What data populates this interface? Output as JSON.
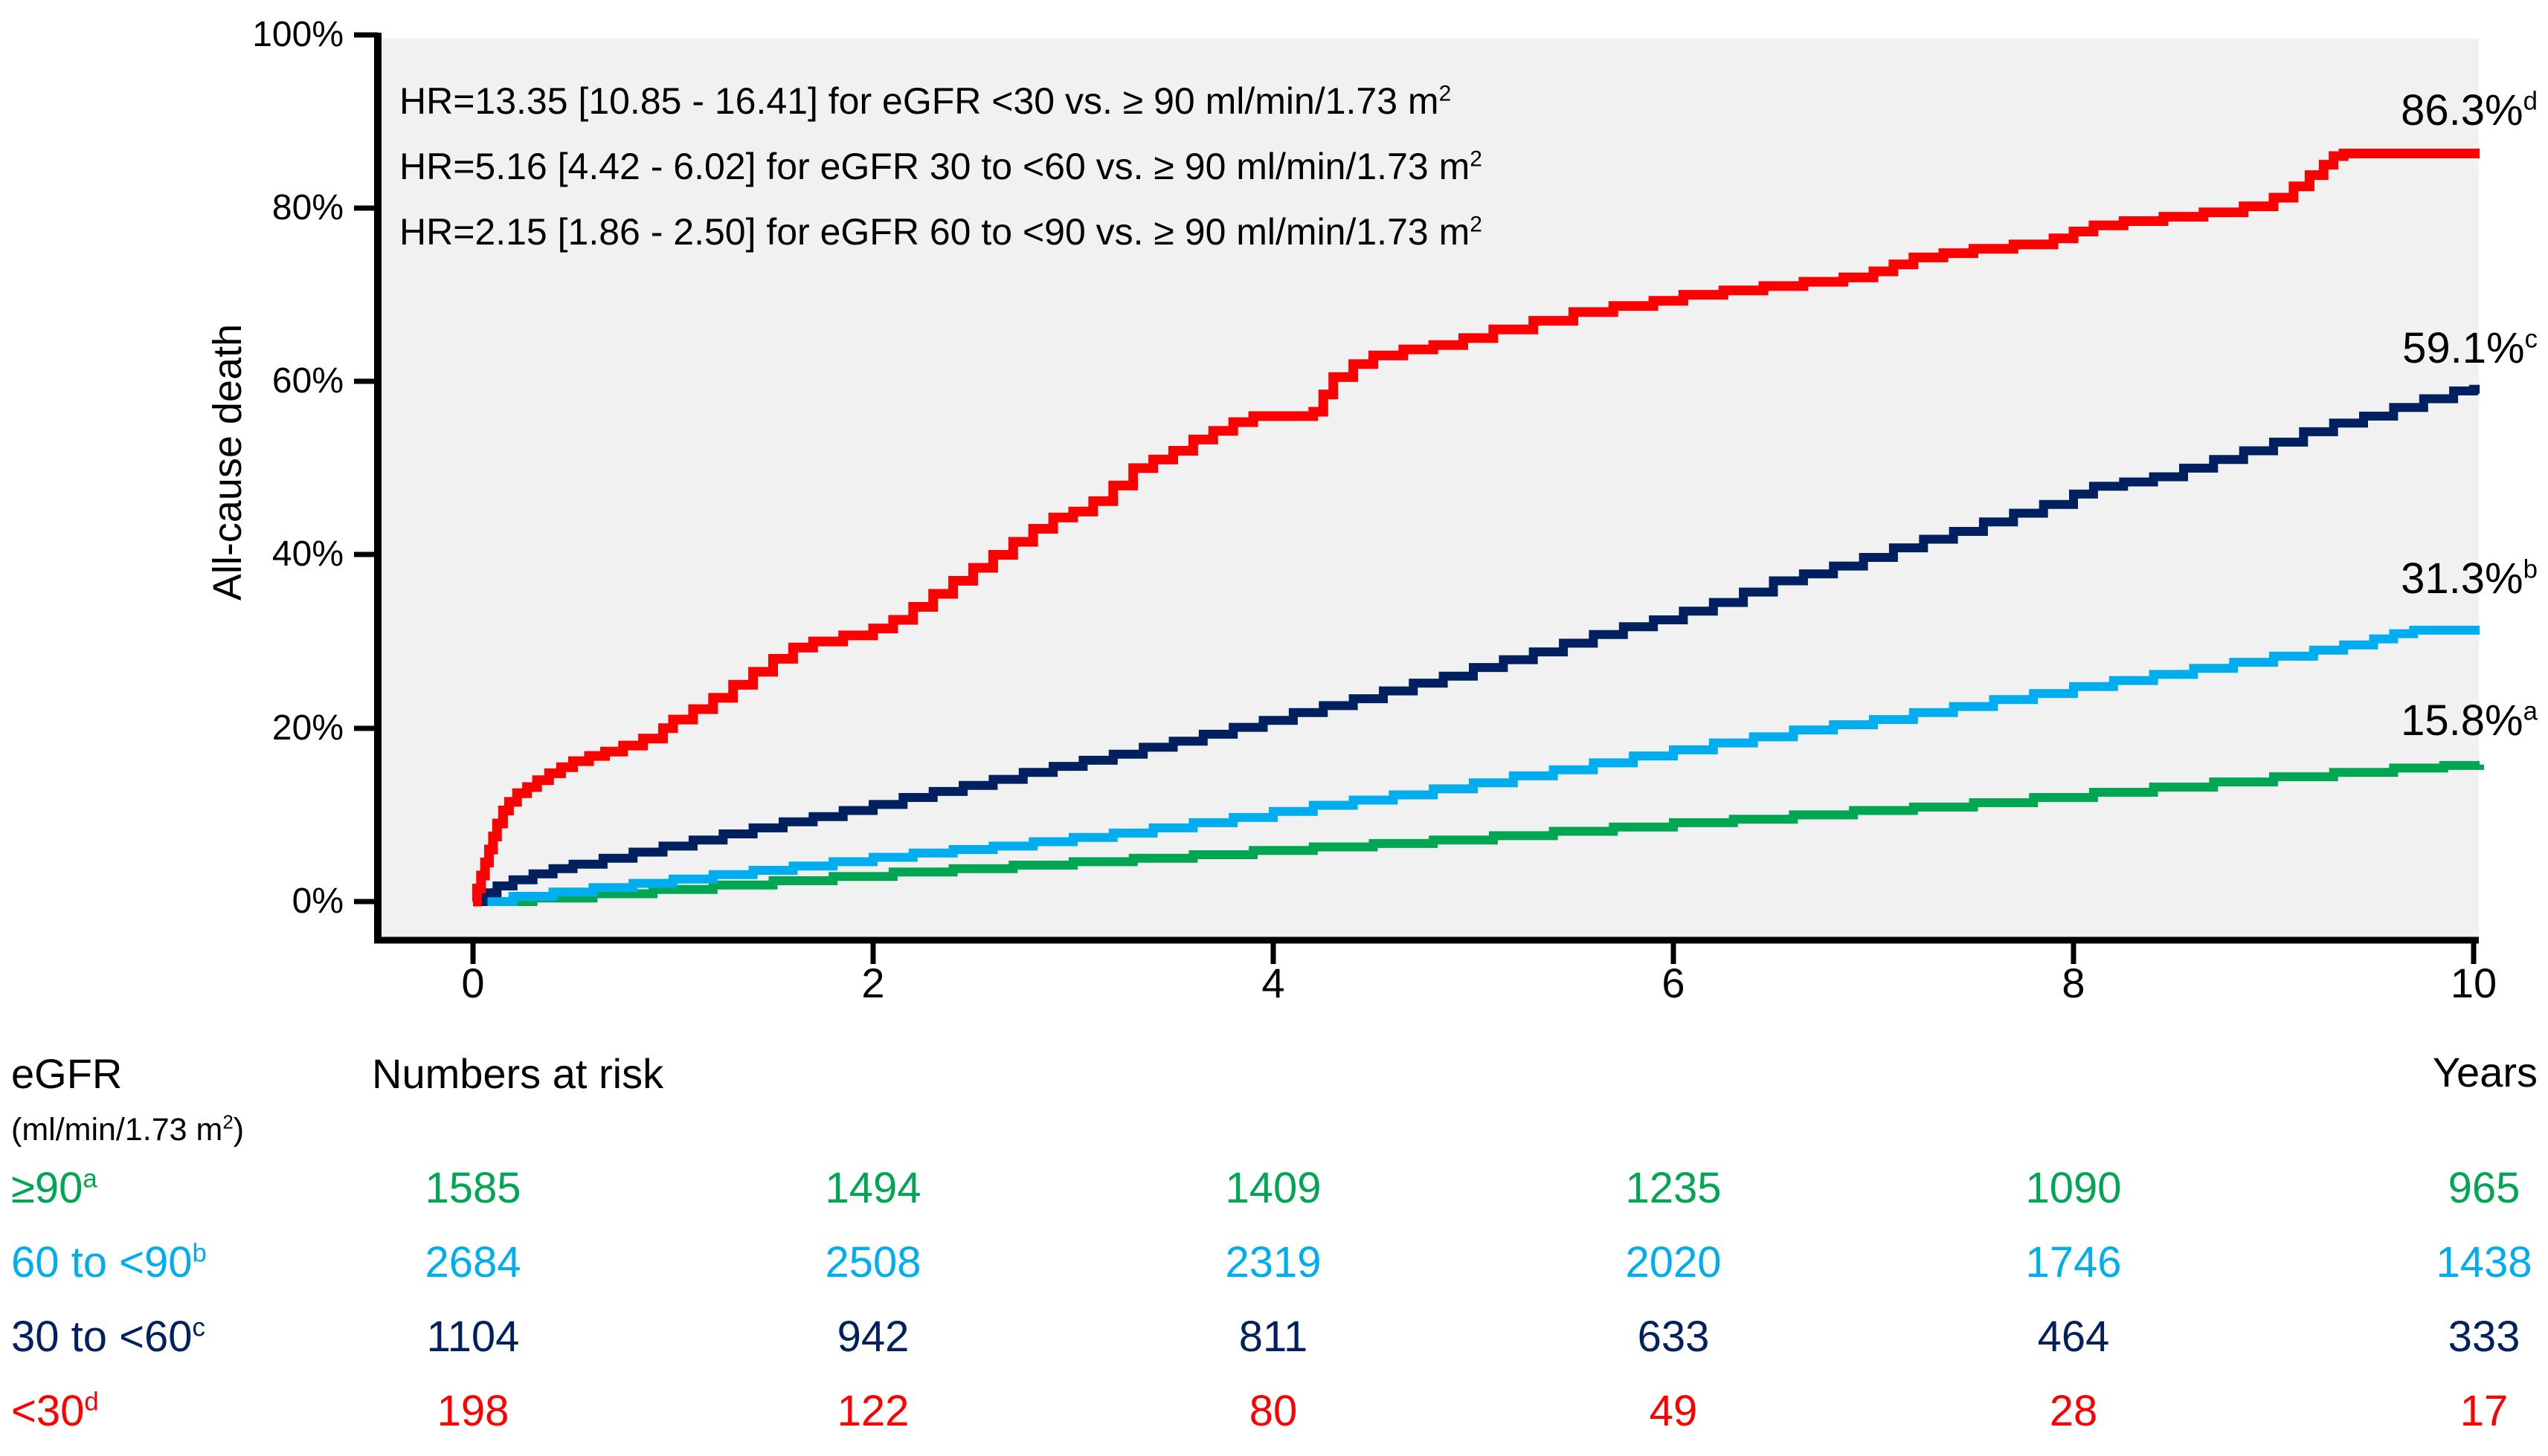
{
  "chart_data": {
    "type": "line",
    "subtype": "kaplan-meier-cumulative-incidence-step-curves",
    "title": "",
    "ylabel": "All-cause death",
    "xlabel": "Years",
    "xlim": [
      0,
      10
    ],
    "ylim": [
      0,
      100
    ],
    "grid": false,
    "plot_bg": "#F1F1F1",
    "axis_color": "#000000",
    "x_tick_values": [
      0,
      2,
      4,
      6,
      8,
      10
    ],
    "x_tick_labels": [
      "0",
      "2",
      "4",
      "6",
      "8",
      "10"
    ],
    "y_tick_values": [
      100,
      80,
      60,
      40,
      20,
      0
    ],
    "y_tick_labels": [
      "100%",
      "80%",
      "60%",
      "40%",
      "20%",
      "0%"
    ],
    "annotations": [
      {
        "text": "HR=13.35 [10.85 - 16.41] for eGFR <30 vs. ≥ 90 ml/min/1.73 m",
        "sup": "2"
      },
      {
        "text": "HR=5.16 [4.42 - 6.02] for eGFR 30 to <60 vs. ≥ 90 ml/min/1.73 m",
        "sup": "2"
      },
      {
        "text": "HR=2.15 [1.86 - 2.50] for eGFR 60 to <90 vs. ≥ 90 ml/min/1.73 m",
        "sup": "2"
      }
    ],
    "end_labels": [
      {
        "text": "86.3%",
        "sup": "d"
      },
      {
        "text": "59.1%",
        "sup": "c"
      },
      {
        "text": "31.3%",
        "sup": "b"
      },
      {
        "text": "15.8%",
        "sup": "a"
      }
    ],
    "series": [
      {
        "name": "eGFR ≥90 ml/min/1.73 m2",
        "footnote": "a",
        "color": "#00A651",
        "final_value_pct": 15.8,
        "points": [
          [
            0,
            0
          ],
          [
            0.3,
            0.4
          ],
          [
            0.6,
            0.9
          ],
          [
            0.9,
            1.4
          ],
          [
            1.2,
            1.9
          ],
          [
            1.5,
            2.4
          ],
          [
            1.8,
            2.9
          ],
          [
            2.1,
            3.4
          ],
          [
            2.4,
            3.8
          ],
          [
            2.7,
            4.2
          ],
          [
            3.0,
            4.6
          ],
          [
            3.3,
            5.0
          ],
          [
            3.6,
            5.4
          ],
          [
            3.9,
            5.9
          ],
          [
            4.2,
            6.3
          ],
          [
            4.5,
            6.7
          ],
          [
            4.8,
            7.1
          ],
          [
            5.1,
            7.6
          ],
          [
            5.4,
            8.1
          ],
          [
            5.7,
            8.6
          ],
          [
            6.0,
            9.1
          ],
          [
            6.3,
            9.5
          ],
          [
            6.6,
            10.0
          ],
          [
            6.9,
            10.5
          ],
          [
            7.2,
            10.9
          ],
          [
            7.5,
            11.4
          ],
          [
            7.8,
            12.0
          ],
          [
            8.1,
            12.6
          ],
          [
            8.4,
            13.2
          ],
          [
            8.7,
            13.8
          ],
          [
            9.0,
            14.4
          ],
          [
            9.3,
            14.9
          ],
          [
            9.6,
            15.4
          ],
          [
            9.85,
            15.7
          ],
          [
            10.03,
            15.8
          ]
        ]
      },
      {
        "name": "eGFR 60 to <90 ml/min/1.73 m2",
        "footnote": "b",
        "color": "#00AEEF",
        "final_value_pct": 31.3,
        "points": [
          [
            0,
            0
          ],
          [
            0.2,
            0.6
          ],
          [
            0.4,
            1.1
          ],
          [
            0.6,
            1.6
          ],
          [
            0.8,
            2.1
          ],
          [
            1.0,
            2.6
          ],
          [
            1.2,
            3.1
          ],
          [
            1.4,
            3.6
          ],
          [
            1.6,
            4.1
          ],
          [
            1.8,
            4.6
          ],
          [
            2.0,
            5.1
          ],
          [
            2.2,
            5.6
          ],
          [
            2.4,
            6.0
          ],
          [
            2.6,
            6.4
          ],
          [
            2.8,
            6.9
          ],
          [
            3.0,
            7.4
          ],
          [
            3.2,
            7.9
          ],
          [
            3.4,
            8.5
          ],
          [
            3.6,
            9.1
          ],
          [
            3.8,
            9.7
          ],
          [
            4.0,
            10.4
          ],
          [
            4.2,
            11.1
          ],
          [
            4.4,
            11.7
          ],
          [
            4.6,
            12.3
          ],
          [
            4.8,
            13.0
          ],
          [
            5.0,
            13.7
          ],
          [
            5.2,
            14.5
          ],
          [
            5.4,
            15.2
          ],
          [
            5.6,
            16.0
          ],
          [
            5.8,
            16.8
          ],
          [
            6.0,
            17.5
          ],
          [
            6.2,
            18.3
          ],
          [
            6.4,
            19.0
          ],
          [
            6.6,
            19.8
          ],
          [
            6.8,
            20.4
          ],
          [
            7.0,
            21.0
          ],
          [
            7.2,
            21.8
          ],
          [
            7.4,
            22.5
          ],
          [
            7.6,
            23.3
          ],
          [
            7.8,
            24.0
          ],
          [
            8.0,
            24.8
          ],
          [
            8.2,
            25.5
          ],
          [
            8.4,
            26.2
          ],
          [
            8.6,
            26.9
          ],
          [
            8.8,
            27.6
          ],
          [
            9.0,
            28.3
          ],
          [
            9.2,
            29.0
          ],
          [
            9.35,
            29.6
          ],
          [
            9.5,
            30.3
          ],
          [
            9.6,
            30.9
          ],
          [
            9.7,
            31.3
          ],
          [
            10.03,
            31.3
          ]
        ]
      },
      {
        "name": "eGFR 30 to <60 ml/min/1.73 m2",
        "footnote": "c",
        "color": "#002060",
        "final_value_pct": 59.1,
        "points": [
          [
            0,
            0
          ],
          [
            0.05,
            1.0
          ],
          [
            0.12,
            1.8
          ],
          [
            0.2,
            2.5
          ],
          [
            0.3,
            3.2
          ],
          [
            0.4,
            3.8
          ],
          [
            0.5,
            4.3
          ],
          [
            0.65,
            5.0
          ],
          [
            0.8,
            5.7
          ],
          [
            0.95,
            6.4
          ],
          [
            1.1,
            7.1
          ],
          [
            1.25,
            7.8
          ],
          [
            1.4,
            8.5
          ],
          [
            1.55,
            9.2
          ],
          [
            1.7,
            9.8
          ],
          [
            1.85,
            10.5
          ],
          [
            2.0,
            11.2
          ],
          [
            2.15,
            12.0
          ],
          [
            2.3,
            12.7
          ],
          [
            2.45,
            13.4
          ],
          [
            2.6,
            14.1
          ],
          [
            2.75,
            14.9
          ],
          [
            2.9,
            15.6
          ],
          [
            3.05,
            16.3
          ],
          [
            3.2,
            17.0
          ],
          [
            3.35,
            17.8
          ],
          [
            3.5,
            18.5
          ],
          [
            3.65,
            19.3
          ],
          [
            3.8,
            20.1
          ],
          [
            3.95,
            20.9
          ],
          [
            4.1,
            21.8
          ],
          [
            4.25,
            22.6
          ],
          [
            4.4,
            23.4
          ],
          [
            4.55,
            24.3
          ],
          [
            4.7,
            25.2
          ],
          [
            4.85,
            26.0
          ],
          [
            5.0,
            27.0
          ],
          [
            5.15,
            27.9
          ],
          [
            5.3,
            28.8
          ],
          [
            5.45,
            29.8
          ],
          [
            5.6,
            30.8
          ],
          [
            5.75,
            31.7
          ],
          [
            5.9,
            32.5
          ],
          [
            6.05,
            33.5
          ],
          [
            6.2,
            34.5
          ],
          [
            6.35,
            35.7
          ],
          [
            6.5,
            37.0
          ],
          [
            6.65,
            37.8
          ],
          [
            6.8,
            38.7
          ],
          [
            6.95,
            39.7
          ],
          [
            7.1,
            40.8
          ],
          [
            7.25,
            41.8
          ],
          [
            7.4,
            42.7
          ],
          [
            7.55,
            43.8
          ],
          [
            7.7,
            44.8
          ],
          [
            7.85,
            45.8
          ],
          [
            8.0,
            47.0
          ],
          [
            8.1,
            47.9
          ],
          [
            8.25,
            48.4
          ],
          [
            8.4,
            49.0
          ],
          [
            8.55,
            50.0
          ],
          [
            8.7,
            51.0
          ],
          [
            8.85,
            52.0
          ],
          [
            9.0,
            53.0
          ],
          [
            9.15,
            54.2
          ],
          [
            9.3,
            55.2
          ],
          [
            9.45,
            56.0
          ],
          [
            9.6,
            57.0
          ],
          [
            9.75,
            58.0
          ],
          [
            9.9,
            58.9
          ],
          [
            10.0,
            59.1
          ],
          [
            10.03,
            59.1
          ]
        ]
      },
      {
        "name": "eGFR <30 ml/min/1.73 m2",
        "footnote": "d",
        "color": "#FF0000",
        "final_value_pct": 86.3,
        "points": [
          [
            0,
            0
          ],
          [
            0.02,
            1.5
          ],
          [
            0.04,
            3.0
          ],
          [
            0.06,
            4.5
          ],
          [
            0.08,
            6.0
          ],
          [
            0.1,
            7.5
          ],
          [
            0.12,
            9.0
          ],
          [
            0.15,
            10.5
          ],
          [
            0.18,
            11.5
          ],
          [
            0.22,
            12.5
          ],
          [
            0.27,
            13.2
          ],
          [
            0.32,
            14.0
          ],
          [
            0.38,
            14.8
          ],
          [
            0.44,
            15.5
          ],
          [
            0.5,
            16.2
          ],
          [
            0.58,
            16.8
          ],
          [
            0.66,
            17.3
          ],
          [
            0.75,
            18.0
          ],
          [
            0.85,
            18.8
          ],
          [
            0.95,
            20.0
          ],
          [
            1.0,
            21.0
          ],
          [
            1.1,
            22.2
          ],
          [
            1.2,
            23.5
          ],
          [
            1.3,
            25.0
          ],
          [
            1.4,
            26.5
          ],
          [
            1.5,
            28.0
          ],
          [
            1.6,
            29.3
          ],
          [
            1.7,
            30.0
          ],
          [
            1.85,
            30.7
          ],
          [
            2.0,
            31.5
          ],
          [
            2.1,
            32.5
          ],
          [
            2.2,
            34.0
          ],
          [
            2.3,
            35.5
          ],
          [
            2.4,
            37.0
          ],
          [
            2.5,
            38.5
          ],
          [
            2.6,
            40.0
          ],
          [
            2.7,
            41.5
          ],
          [
            2.8,
            43.0
          ],
          [
            2.9,
            44.3
          ],
          [
            3.0,
            45.0
          ],
          [
            3.1,
            46.2
          ],
          [
            3.2,
            48.0
          ],
          [
            3.3,
            50.0
          ],
          [
            3.4,
            51.0
          ],
          [
            3.5,
            52.0
          ],
          [
            3.6,
            53.3
          ],
          [
            3.7,
            54.3
          ],
          [
            3.8,
            55.3
          ],
          [
            3.9,
            56.0
          ],
          [
            4.2,
            56.5
          ],
          [
            4.25,
            58.5
          ],
          [
            4.3,
            60.5
          ],
          [
            4.4,
            62.0
          ],
          [
            4.5,
            63.0
          ],
          [
            4.65,
            63.7
          ],
          [
            4.8,
            64.2
          ],
          [
            4.95,
            65.0
          ],
          [
            5.1,
            66.0
          ],
          [
            5.3,
            67.0
          ],
          [
            5.5,
            68.0
          ],
          [
            5.7,
            68.7
          ],
          [
            5.9,
            69.3
          ],
          [
            6.05,
            70.0
          ],
          [
            6.25,
            70.5
          ],
          [
            6.45,
            71.0
          ],
          [
            6.65,
            71.5
          ],
          [
            6.85,
            72.0
          ],
          [
            7.0,
            72.7
          ],
          [
            7.1,
            73.5
          ],
          [
            7.2,
            74.3
          ],
          [
            7.35,
            74.8
          ],
          [
            7.5,
            75.3
          ],
          [
            7.7,
            75.8
          ],
          [
            7.9,
            76.5
          ],
          [
            8.0,
            77.3
          ],
          [
            8.1,
            78.0
          ],
          [
            8.25,
            78.5
          ],
          [
            8.45,
            79.0
          ],
          [
            8.65,
            79.5
          ],
          [
            8.85,
            80.2
          ],
          [
            9.0,
            81.2
          ],
          [
            9.1,
            82.5
          ],
          [
            9.18,
            83.8
          ],
          [
            9.25,
            85.0
          ],
          [
            9.3,
            86.0
          ],
          [
            9.35,
            86.3
          ],
          [
            10.03,
            86.3
          ]
        ]
      }
    ]
  },
  "risk_table": {
    "egfr_label": "eGFR",
    "egfr_unit_prefix": "(ml/min/1.73 m",
    "egfr_unit_sup": "2",
    "egfr_unit_suffix": ")",
    "header": "Numbers at risk",
    "years_label": "Years",
    "rows": [
      {
        "label": "≥90",
        "sup": "a",
        "color": "#00A651",
        "values": [
          "1585",
          "1494",
          "1409",
          "1235",
          "1090",
          "965"
        ]
      },
      {
        "label": "60 to <90",
        "sup": "b",
        "color": "#00AEEF",
        "values": [
          "2684",
          "2508",
          "2319",
          "2020",
          "1746",
          "1438"
        ]
      },
      {
        "label": "30 to <60",
        "sup": "c",
        "color": "#002060",
        "values": [
          "1104",
          "942",
          "811",
          "633",
          "464",
          "333"
        ]
      },
      {
        "label": "<30",
        "sup": "d",
        "color": "#FF0000",
        "values": [
          "198",
          "122",
          "80",
          "49",
          "28",
          "17"
        ]
      }
    ]
  }
}
